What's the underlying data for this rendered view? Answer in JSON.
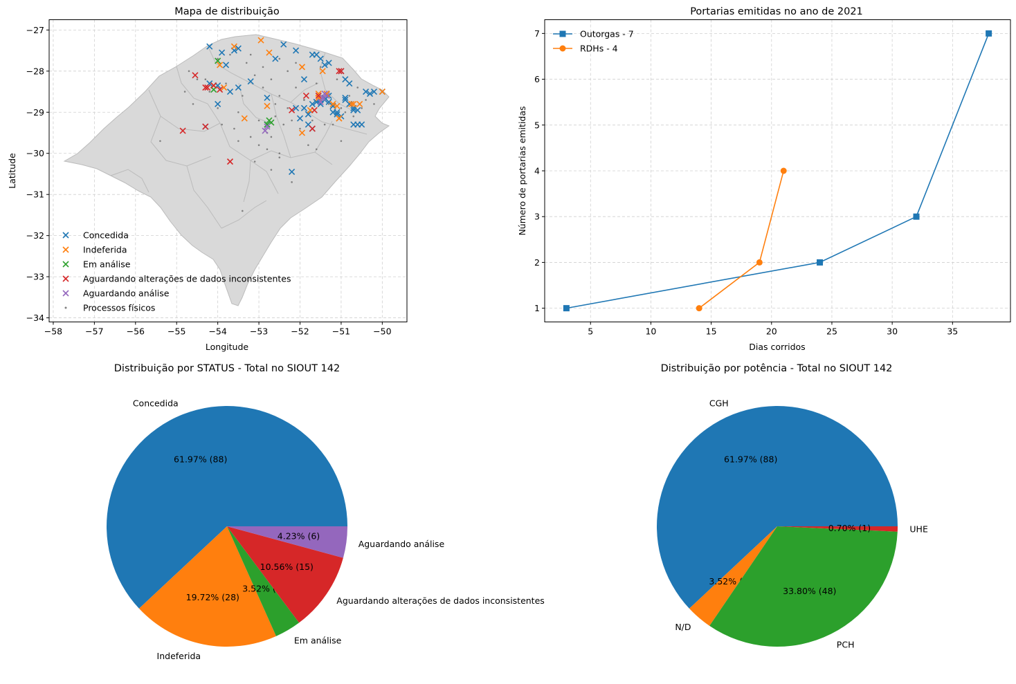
{
  "chart_data": [
    {
      "type": "scatter",
      "title": "Mapa de distribuição",
      "xlabel": "Longitude",
      "ylabel": "Latitude",
      "xlim": [
        -58.1,
        -49.4
      ],
      "ylim": [
        -34.1,
        -26.75
      ],
      "xticks": [
        -58,
        -57,
        -56,
        -55,
        -54,
        -53,
        -52,
        -51,
        -50
      ],
      "yticks": [
        -34,
        -33,
        -32,
        -31,
        -30,
        -29,
        -28,
        -27
      ],
      "grid": true,
      "legend": "lower-left",
      "background_map": true,
      "colors": {
        "map_fill": "#d9d9d9",
        "map_edge": "#bbbbbb"
      },
      "series": [
        {
          "name": "Concedida",
          "marker": "x",
          "color": "#1f77b4",
          "x": [
            -54.2,
            -53.9,
            -53.6,
            -53.5,
            -52.4,
            -52.1,
            -51.7,
            -51.6,
            -51.5,
            -51.4,
            -51.3,
            -51.0,
            -50.9,
            -50.8,
            -50.4,
            -50.3,
            -50.2,
            -50.0,
            -54.2,
            -54.0,
            -53.7,
            -53.5,
            -53.2,
            -52.8,
            -52.6,
            -51.9,
            -51.6,
            -51.5,
            -51.4,
            -51.3,
            -51.2,
            -51.1,
            -50.9,
            -50.7,
            -50.6,
            -50.5,
            -54.0,
            -53.8,
            -52.8,
            -52.0,
            -51.9,
            -51.8,
            -51.7,
            -51.6,
            -51.5,
            -51.4,
            -51.3,
            -51.2,
            -51.1,
            -51.0,
            -50.9,
            -50.7,
            -50.6,
            -52.1,
            -51.8,
            -51.7,
            -51.2,
            -50.8,
            -50.7,
            -54.3,
            -52.2
          ],
          "y": [
            -27.4,
            -27.55,
            -27.5,
            -27.45,
            -27.35,
            -27.5,
            -27.6,
            -27.6,
            -27.7,
            -27.85,
            -27.8,
            -28.0,
            -28.2,
            -28.3,
            -28.5,
            -28.55,
            -28.5,
            -28.5,
            -28.3,
            -28.35,
            -28.5,
            -28.4,
            -28.25,
            -28.65,
            -27.7,
            -28.2,
            -28.75,
            -28.7,
            -28.65,
            -28.6,
            -28.85,
            -29.0,
            -28.7,
            -28.9,
            -28.95,
            -29.3,
            -28.8,
            -27.85,
            -29.3,
            -29.15,
            -28.9,
            -29.05,
            -28.8,
            -28.75,
            -28.8,
            -28.7,
            -28.75,
            -29.0,
            -29.05,
            -29.1,
            -28.65,
            -29.3,
            -29.3,
            -28.9,
            -29.3,
            -29.4,
            -28.85,
            -28.8,
            -28.95,
            -29.35,
            -30.45
          ]
        },
        {
          "name": "Indeferida",
          "marker": "x",
          "color": "#ff7f0e",
          "x": [
            -53.6,
            -52.95,
            -52.75,
            -53.95,
            -54.1,
            -53.85,
            -51.95,
            -51.45,
            -51.35,
            -51.2,
            -51.05,
            -50.7,
            -50.55,
            -50.0,
            -52.8,
            -51.75,
            -51.55,
            -51.1,
            -50.75,
            -53.35,
            -51.95,
            -51.55,
            -51.05
          ],
          "y": [
            -27.4,
            -27.25,
            -27.55,
            -27.85,
            -28.35,
            -28.4,
            -27.9,
            -28.0,
            -28.55,
            -28.8,
            -29.15,
            -28.8,
            -28.8,
            -28.5,
            -28.85,
            -28.95,
            -28.65,
            -28.85,
            -28.8,
            -29.15,
            -29.5,
            -28.55,
            -29.15
          ]
        },
        {
          "name": "Em análise",
          "marker": "x",
          "color": "#2ca02c",
          "x": [
            -54.0,
            -52.75,
            -52.7,
            -52.8,
            -54.1
          ],
          "y": [
            -27.75,
            -29.2,
            -29.25,
            -29.3,
            -28.45
          ]
        },
        {
          "name": "Aguardando alterações de dados inconsistentes",
          "marker": "x",
          "color": "#d62728",
          "x": [
            -54.55,
            -54.3,
            -54.1,
            -53.95,
            -54.25,
            -54.85,
            -53.7,
            -52.2,
            -51.85,
            -51.7,
            -51.05,
            -51.0,
            -54.3,
            -51.55,
            -51.65
          ],
          "y": [
            -28.1,
            -28.4,
            -28.35,
            -28.45,
            -28.4,
            -29.45,
            -30.2,
            -28.95,
            -28.6,
            -29.4,
            -28.0,
            -28.0,
            -29.35,
            -28.6,
            -28.95
          ]
        },
        {
          "name": "Aguardando análise",
          "marker": "x",
          "color": "#9467bd",
          "x": [
            -52.8,
            -52.85,
            -51.4,
            -51.35,
            -51.45,
            -51.5
          ],
          "y": [
            -29.35,
            -29.45,
            -28.55,
            -28.6,
            -28.65,
            -28.75
          ]
        },
        {
          "name": "Processos físicos",
          "marker": ".",
          "color": "#808080",
          "x": [
            -55.4,
            -54.5,
            -54.2,
            -54.0,
            -53.8,
            -53.4,
            -53.1,
            -52.9,
            -52.7,
            -52.5,
            -52.3,
            -52.1,
            -51.9,
            -51.6,
            -51.3,
            -51.1,
            -50.8,
            -50.6,
            -50.4,
            -54.8,
            -54.6,
            -54.3,
            -53.9,
            -53.5,
            -53.0,
            -52.6,
            -52.2,
            -51.8,
            -51.4,
            -51.0,
            -50.7,
            -53.6,
            -53.2,
            -52.8,
            -52.4,
            -52.0,
            -51.7,
            -51.2,
            -50.9,
            -53.3,
            -52.9,
            -52.5,
            -52.1,
            -51.5,
            -54.0,
            -53.7,
            -52.6,
            -52.3,
            -51.9,
            -51.3,
            -50.5,
            -53.5,
            -53.0,
            -52.7,
            -54.7,
            -53.2,
            -52.5,
            -53.1,
            -52.8,
            -52.5,
            -52.2,
            -51.8,
            -51.6,
            -51.0,
            -50.2,
            -53.4,
            -52.7
          ],
          "y": [
            -29.7,
            -28.2,
            -28.5,
            -28.9,
            -28.3,
            -28.6,
            -28.1,
            -28.4,
            -28.2,
            -28.6,
            -28.0,
            -28.4,
            -28.7,
            -28.3,
            -28.5,
            -28.2,
            -28.6,
            -28.4,
            -28.7,
            -28.5,
            -28.8,
            -28.2,
            -29.3,
            -29.0,
            -29.2,
            -29.1,
            -29.2,
            -29.0,
            -29.3,
            -28.9,
            -29.1,
            -29.4,
            -29.6,
            -29.5,
            -29.3,
            -29.4,
            -29.2,
            -29.3,
            -29.0,
            -27.8,
            -27.9,
            -27.7,
            -27.8,
            -27.9,
            -27.7,
            -27.6,
            -28.8,
            -28.9,
            -28.7,
            -28.8,
            -28.9,
            -29.7,
            -29.8,
            -29.6,
            -28.0,
            -27.6,
            -30.0,
            -30.2,
            -29.9,
            -30.1,
            -30.7,
            -29.8,
            -29.9,
            -29.7,
            -28.8,
            -31.4,
            -30.4
          ]
        }
      ]
    },
    {
      "type": "line",
      "title": "Portarias emitidas no ano de 2021",
      "xlabel": "Dias corridos",
      "ylabel": "Número de portarias emitidas",
      "xlim": [
        1.2,
        39.8
      ],
      "ylim": [
        0.7,
        7.3
      ],
      "xticks": [
        5,
        10,
        15,
        20,
        25,
        30,
        35
      ],
      "yticks": [
        1,
        2,
        3,
        4,
        5,
        6,
        7
      ],
      "grid": true,
      "legend": "top-left",
      "series": [
        {
          "name": "Outorgas - 7",
          "marker": "square",
          "color": "#1f77b4",
          "x": [
            3,
            24,
            32,
            38
          ],
          "y": [
            1,
            2,
            3,
            7
          ]
        },
        {
          "name": "RDHs - 4",
          "marker": "circle",
          "color": "#ff7f0e",
          "x": [
            14,
            19,
            21
          ],
          "y": [
            1,
            2,
            4
          ]
        }
      ]
    },
    {
      "type": "pie",
      "title": "Distribuição por STATUS - Total no SIOUT 142",
      "slices": [
        {
          "label": "Concedida",
          "value": 88,
          "pct_label": "61.97%  (88)",
          "color": "#1f77b4"
        },
        {
          "label": "Indeferida",
          "value": 28,
          "pct_label": "19.72%  (28)",
          "color": "#ff7f0e"
        },
        {
          "label": "Em análise",
          "value": 5,
          "pct_label": "3.52%  (5)",
          "color": "#2ca02c"
        },
        {
          "label": "Aguardando alterações de dados inconsistentes",
          "value": 15,
          "pct_label": "10.56%  (15)",
          "color": "#d62728"
        },
        {
          "label": "Aguardando análise",
          "value": 6,
          "pct_label": "4.23%  (6)",
          "color": "#9467bd"
        }
      ]
    },
    {
      "type": "pie",
      "title": "Distribuição por potência - Total no SIOUT 142",
      "slices": [
        {
          "label": "CGH",
          "value": 88,
          "pct_label": "61.97%  (88)",
          "color": "#1f77b4"
        },
        {
          "label": "N/D",
          "value": 5,
          "pct_label": "3.52%  (5)",
          "color": "#ff7f0e"
        },
        {
          "label": "PCH",
          "value": 48,
          "pct_label": "33.80%  (48)",
          "color": "#2ca02c"
        },
        {
          "label": "UHE",
          "value": 1,
          "pct_label": "0.70%  (1)",
          "color": "#d62728"
        }
      ]
    }
  ]
}
